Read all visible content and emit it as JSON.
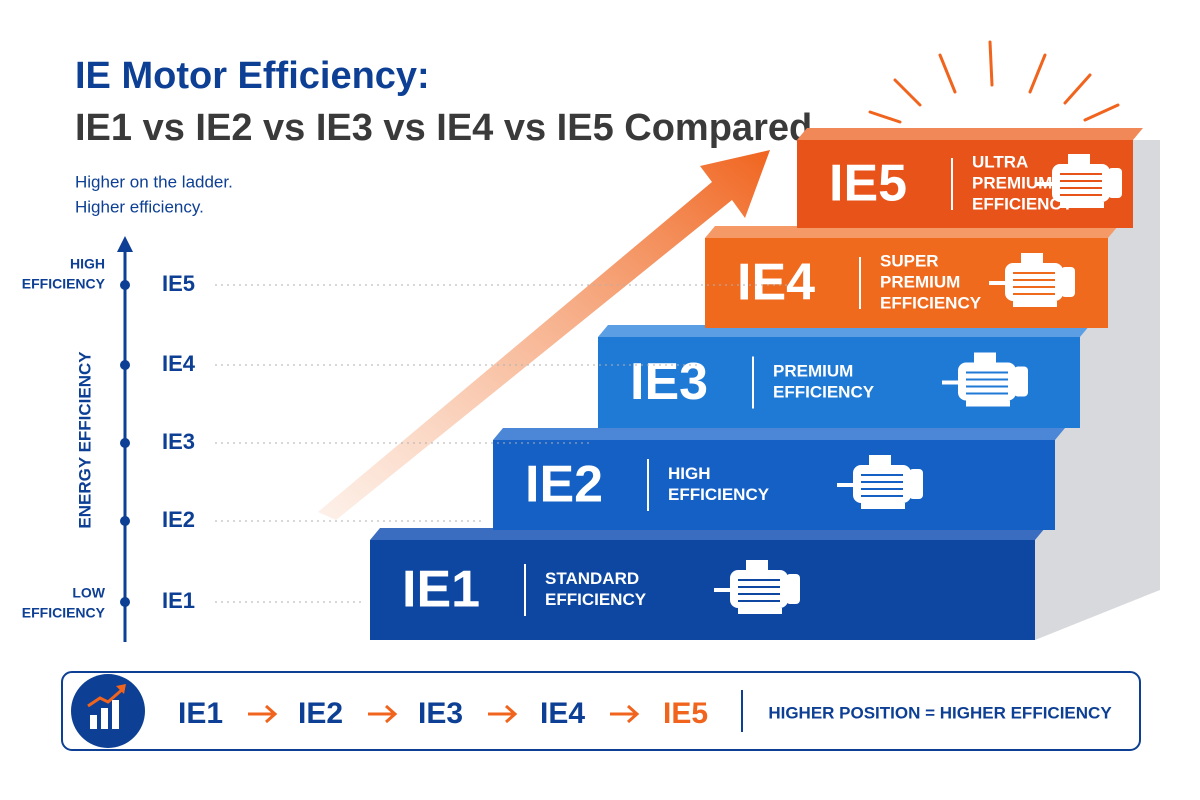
{
  "title": {
    "line1": "IE Motor Efficiency:",
    "line2": "IE1 vs IE2 vs IE3 vs IE4 vs IE5 Compared"
  },
  "tagline": [
    "Higher on the ladder.",
    "Higher efficiency."
  ],
  "axis": {
    "label": "ENERGY EFFICIENCY",
    "high": [
      "HIGH",
      "EFFICIENCY"
    ],
    "low": [
      "LOW",
      "EFFICIENCY"
    ],
    "levels": [
      "IE5",
      "IE4",
      "IE3",
      "IE2",
      "IE1"
    ]
  },
  "steps": [
    {
      "code": "IE1",
      "description": [
        "STANDARD",
        "EFFICIENCY"
      ]
    },
    {
      "code": "IE2",
      "description": [
        "HIGH",
        "EFFICIENCY"
      ]
    },
    {
      "code": "IE3",
      "description": [
        "PREMIUM",
        "EFFICIENCY"
      ]
    },
    {
      "code": "IE4",
      "description": [
        "SUPER",
        "PREMIUM",
        "EFFICIENCY"
      ]
    },
    {
      "code": "IE5",
      "description": [
        "ULTRA",
        "PREMIUM",
        "EFFICIENCY"
      ]
    }
  ],
  "footer": {
    "sequence": [
      "IE1",
      "IE2",
      "IE3",
      "IE4",
      "IE5"
    ],
    "note": "HIGHER POSITION = HIGHER EFFICIENCY"
  }
}
